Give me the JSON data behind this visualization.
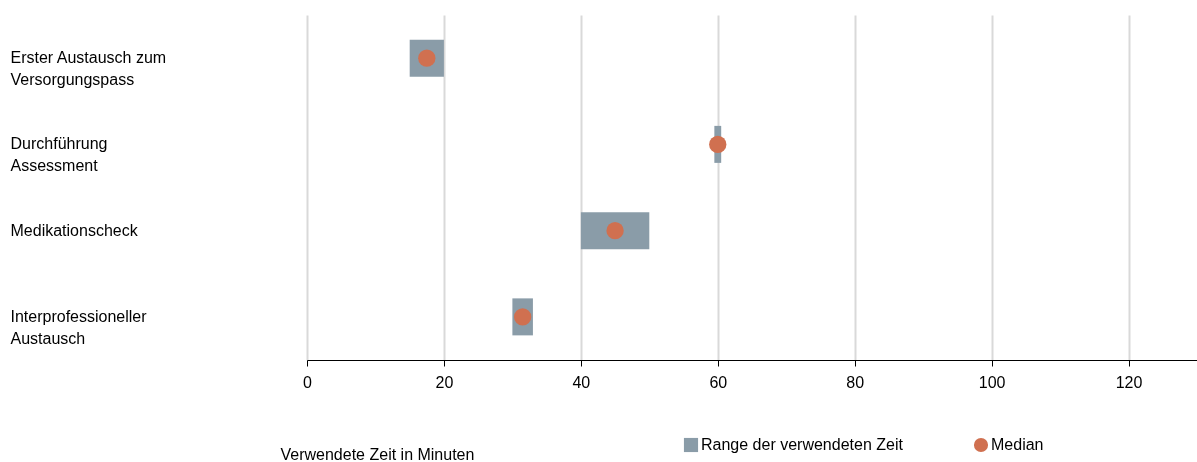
{
  "chart_data": {
    "type": "bar",
    "orientation": "horizontal",
    "xlabel": "Verwendete Zeit in Minuten",
    "categories": [
      "Erster Austausch zum Versorgungspass",
      "Durchführung Assessment",
      "Medikationscheck",
      "Interprofessioneller Austausch"
    ],
    "series": [
      {
        "name": "Range der verwendeten Zeit",
        "type": "bar",
        "color": "#8a9ca8",
        "values": [
          5,
          1,
          10,
          3
        ],
        "base": [
          15,
          59.5,
          40,
          30
        ]
      },
      {
        "name": "Median",
        "type": "scatter",
        "color": "#d07050",
        "values": [
          17.5,
          60,
          45,
          31.5
        ]
      }
    ],
    "xlim": [
      0,
      130
    ],
    "xticks": [
      0,
      20,
      40,
      60,
      80,
      100,
      120
    ],
    "grid": "x",
    "legend": "bottom",
    "marker": "circle"
  }
}
